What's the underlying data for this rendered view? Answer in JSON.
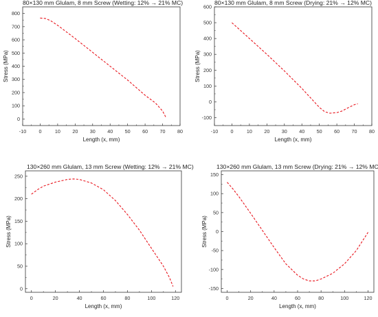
{
  "chart_data": [
    {
      "type": "line",
      "title": "80×130 mm Glulam, 8 mm Screw (Wetting: 12% → 21% MC)",
      "xlabel": "Length (x, mm)",
      "ylabel": "Stress (MPa)",
      "xlim": [
        -10,
        80
      ],
      "ylim": [
        -50,
        850
      ],
      "xticks": [
        -10,
        0,
        10,
        20,
        30,
        40,
        50,
        60,
        70,
        80
      ],
      "yticks": [
        0,
        100,
        200,
        300,
        400,
        500,
        600,
        700,
        800
      ],
      "grid": false,
      "series": [
        {
          "color": "#e8141c",
          "style": "dashed",
          "x": [
            0,
            3,
            6,
            10,
            20,
            30,
            40,
            50,
            60,
            66,
            70,
            72
          ],
          "y": [
            765,
            762,
            745,
            710,
            610,
            505,
            400,
            295,
            180,
            120,
            60,
            10
          ]
        }
      ]
    },
    {
      "type": "line",
      "title": "80×130 mm Glulam, 8 mm Screw (Drying: 21% → 12% MC)",
      "xlabel": "Length (x, mm)",
      "ylabel": "Stress (MPa)",
      "xlim": [
        -10,
        80
      ],
      "ylim": [
        -150,
        600
      ],
      "xticks": [
        -10,
        0,
        10,
        20,
        30,
        40,
        50,
        60,
        70,
        80
      ],
      "yticks": [
        -100,
        0,
        100,
        200,
        300,
        400,
        500,
        600
      ],
      "grid": false,
      "series": [
        {
          "color": "#e8141c",
          "style": "dashed",
          "x": [
            0,
            5,
            10,
            20,
            30,
            40,
            45,
            50,
            53,
            56,
            60,
            63,
            66,
            70,
            72
          ],
          "y": [
            500,
            450,
            400,
            300,
            195,
            85,
            25,
            -35,
            -62,
            -72,
            -68,
            -58,
            -40,
            -18,
            -12
          ]
        }
      ]
    },
    {
      "type": "line",
      "title": "130×260 mm Glulam, 13 mm Screw (Wetting: 12% → 21% MC)",
      "xlabel": "Length (x, mm)",
      "ylabel": "Stress (MPa)",
      "xlim": [
        -5,
        125
      ],
      "ylim": [
        -8,
        262
      ],
      "xticks": [
        0,
        20,
        40,
        60,
        80,
        100,
        120
      ],
      "yticks": [
        0,
        50,
        100,
        150,
        200,
        250
      ],
      "grid": false,
      "series": [
        {
          "color": "#e8141c",
          "style": "dashed",
          "x": [
            0,
            5,
            10,
            20,
            30,
            35,
            40,
            50,
            60,
            70,
            80,
            90,
            100,
            110,
            115,
            118
          ],
          "y": [
            210,
            220,
            228,
            237,
            243,
            244,
            243,
            235,
            220,
            196,
            165,
            130,
            90,
            50,
            25,
            5
          ]
        }
      ]
    },
    {
      "type": "line",
      "title": "130×260 mm Glulam, 13 mm Screw (Drying: 21% → 12% MC)",
      "xlabel": "Length (x, mm)",
      "ylabel": "Stress (MPa)",
      "xlim": [
        -5,
        125
      ],
      "ylim": [
        -160,
        160
      ],
      "xticks": [
        0,
        20,
        40,
        60,
        80,
        100,
        120
      ],
      "yticks": [
        -150,
        -100,
        -50,
        0,
        50,
        100,
        150
      ],
      "grid": false,
      "series": [
        {
          "color": "#e8141c",
          "style": "dashed",
          "x": [
            0,
            5,
            10,
            20,
            30,
            40,
            50,
            60,
            65,
            70,
            75,
            80,
            90,
            100,
            110,
            120
          ],
          "y": [
            130,
            112,
            92,
            48,
            3,
            -42,
            -85,
            -115,
            -125,
            -130,
            -130,
            -125,
            -110,
            -85,
            -50,
            -2
          ]
        }
      ]
    }
  ]
}
